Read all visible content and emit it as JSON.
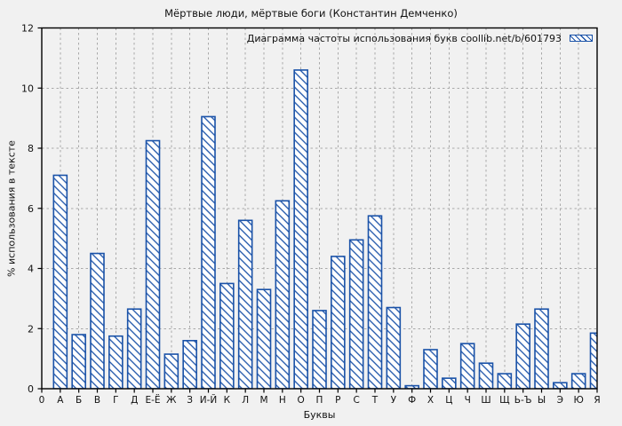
{
  "colors": {
    "bar": "#1a52a8",
    "bar_fill": "#ffffff",
    "background": "#f1f1f1",
    "grid": "#a9a9a9",
    "axis": "#000000"
  },
  "axes": {
    "origin_label": "0"
  },
  "chart_data": {
    "type": "bar",
    "title": "Мёртвые люди, мёртвые боги (Константин Демченко)",
    "legend": "Диаграмма частоты использования букв coollib.net/b/601793",
    "legend_position": "top-right",
    "xlabel": "Буквы",
    "ylabel": "% использования в тексте",
    "ylim": [
      0,
      12
    ],
    "yticks": [
      0,
      2,
      4,
      6,
      8,
      10,
      12
    ],
    "grid": true,
    "bar_style": "hatched-diagonal",
    "categories": [
      "А",
      "Б",
      "В",
      "Г",
      "Д",
      "Е-Ё",
      "Ж",
      "З",
      "И-Й",
      "К",
      "Л",
      "М",
      "Н",
      "О",
      "П",
      "Р",
      "С",
      "Т",
      "У",
      "Ф",
      "Х",
      "Ц",
      "Ч",
      "Ш",
      "Щ",
      "Ь-Ъ",
      "Ы",
      "Э",
      "Ю",
      "Я"
    ],
    "values": [
      7.1,
      1.8,
      4.5,
      1.75,
      2.65,
      8.25,
      1.15,
      1.6,
      9.05,
      3.5,
      5.6,
      3.3,
      6.25,
      10.6,
      2.6,
      4.4,
      4.95,
      5.75,
      2.7,
      0.1,
      1.3,
      0.35,
      1.5,
      0.85,
      0.5,
      2.15,
      2.65,
      0.2,
      0.5,
      1.85
    ]
  }
}
